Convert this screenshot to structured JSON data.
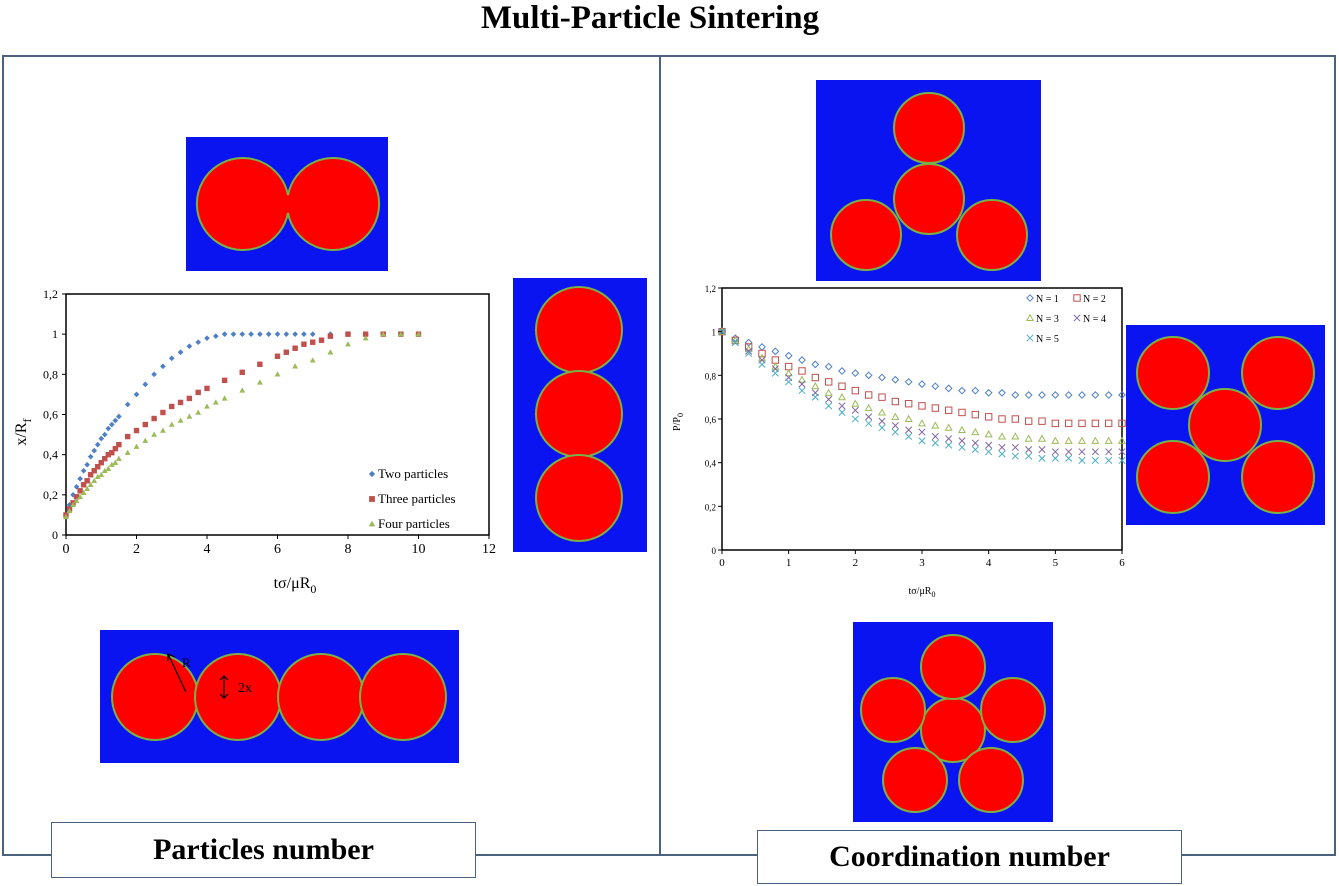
{
  "title": "Multi-Particle Sintering",
  "panels": {
    "left_label": "Particles number",
    "right_label": "Coordination number"
  },
  "colors": {
    "background_blue": "#0a14f0",
    "particle_red": "#ff0000",
    "particle_outline": "#7ab048",
    "frame": "#4a6180",
    "series_blue": "#4f7fc6",
    "series_red": "#c0504d",
    "series_green": "#9bbb59",
    "series_cyan": "#4bacc6",
    "series_purple": "#8064a2"
  },
  "sketch_labels": {
    "radius": "R",
    "neck": "2x"
  },
  "chart_data": [
    {
      "type": "scatter",
      "xlabel": "tσ/μR",
      "xlabel_sub": "0",
      "ylabel": "x/R",
      "ylabel_sub": "f",
      "xlim": [
        0,
        12
      ],
      "ylim": [
        0,
        1.2
      ],
      "x_ticks": [
        "0",
        "2",
        "4",
        "6",
        "8",
        "10",
        "12"
      ],
      "y_ticks": [
        "0",
        "0,2",
        "0,4",
        "0,6",
        "0,8",
        "1",
        "1,2"
      ],
      "legend_position": "bottom-right",
      "series": [
        {
          "name": "Two particles",
          "marker": "diamond",
          "color": "#4f7fc6",
          "x": [
            0,
            0.1,
            0.2,
            0.3,
            0.4,
            0.5,
            0.6,
            0.7,
            0.8,
            0.9,
            1.0,
            1.1,
            1.2,
            1.3,
            1.4,
            1.5,
            1.75,
            2.0,
            2.25,
            2.5,
            2.75,
            3.0,
            3.25,
            3.5,
            3.75,
            4.0,
            4.25,
            4.5,
            4.75,
            5.0,
            5.25,
            5.5,
            5.75,
            6.0,
            6.25,
            6.5,
            6.75,
            7.0,
            7.5,
            8.0,
            8.5,
            9.0,
            9.5,
            10.0
          ],
          "y": [
            0.1,
            0.15,
            0.2,
            0.24,
            0.28,
            0.32,
            0.35,
            0.39,
            0.42,
            0.45,
            0.48,
            0.5,
            0.53,
            0.55,
            0.57,
            0.59,
            0.65,
            0.7,
            0.75,
            0.8,
            0.84,
            0.88,
            0.91,
            0.94,
            0.96,
            0.98,
            0.99,
            1.0,
            1.0,
            1.0,
            1.0,
            1.0,
            1.0,
            1.0,
            1.0,
            1.0,
            1.0,
            1.0,
            1.0,
            1.0,
            1.0,
            1.0,
            1.0,
            1.0
          ]
        },
        {
          "name": "Three particles",
          "marker": "square",
          "color": "#c0504d",
          "x": [
            0,
            0.1,
            0.2,
            0.3,
            0.4,
            0.5,
            0.6,
            0.7,
            0.8,
            0.9,
            1.0,
            1.1,
            1.2,
            1.3,
            1.4,
            1.5,
            1.75,
            2.0,
            2.25,
            2.5,
            2.75,
            3.0,
            3.25,
            3.5,
            3.75,
            4.0,
            4.5,
            5.0,
            5.5,
            6.0,
            6.25,
            6.5,
            6.75,
            7.0,
            7.25,
            7.5,
            8.0,
            8.5,
            9.0,
            9.5,
            10.0
          ],
          "y": [
            0.1,
            0.13,
            0.16,
            0.19,
            0.22,
            0.25,
            0.27,
            0.3,
            0.32,
            0.34,
            0.36,
            0.38,
            0.4,
            0.41,
            0.43,
            0.45,
            0.49,
            0.52,
            0.55,
            0.58,
            0.61,
            0.64,
            0.66,
            0.68,
            0.71,
            0.73,
            0.77,
            0.81,
            0.85,
            0.89,
            0.91,
            0.93,
            0.95,
            0.96,
            0.97,
            0.99,
            1.0,
            1.0,
            1.0,
            1.0,
            1.0
          ]
        },
        {
          "name": "Four particles",
          "marker": "triangle",
          "color": "#9bbb59",
          "x": [
            0,
            0.1,
            0.2,
            0.3,
            0.4,
            0.5,
            0.6,
            0.7,
            0.8,
            0.9,
            1.0,
            1.1,
            1.2,
            1.3,
            1.4,
            1.5,
            1.75,
            2.0,
            2.25,
            2.5,
            2.75,
            3.0,
            3.25,
            3.5,
            3.75,
            4.0,
            4.25,
            4.5,
            5.0,
            5.5,
            6.0,
            6.5,
            7.0,
            7.5,
            8.0,
            8.5,
            9.0,
            9.5,
            10.0
          ],
          "y": [
            0.09,
            0.12,
            0.15,
            0.17,
            0.19,
            0.21,
            0.23,
            0.25,
            0.27,
            0.29,
            0.3,
            0.32,
            0.33,
            0.35,
            0.36,
            0.38,
            0.41,
            0.44,
            0.47,
            0.5,
            0.52,
            0.55,
            0.57,
            0.59,
            0.61,
            0.64,
            0.66,
            0.68,
            0.72,
            0.76,
            0.8,
            0.84,
            0.87,
            0.91,
            0.95,
            0.98,
            1.0,
            1.0,
            1.0
          ]
        }
      ]
    },
    {
      "type": "scatter",
      "xlabel": "tσ/μR",
      "xlabel_sub": "0",
      "ylabel": "P/P",
      "ylabel_sub": "0",
      "xlim": [
        0,
        6
      ],
      "ylim": [
        0,
        1.2
      ],
      "x_ticks": [
        "0",
        "1",
        "2",
        "3",
        "4",
        "5",
        "6"
      ],
      "y_ticks": [
        "0",
        "0,2",
        "0,4",
        "0,6",
        "0,8",
        "1",
        "1,2"
      ],
      "legend_position": "top-right",
      "series": [
        {
          "name": "N = 1",
          "marker": "diamond",
          "color": "#4f7fc6",
          "x": [
            0,
            0.2,
            0.4,
            0.6,
            0.8,
            1.0,
            1.2,
            1.4,
            1.6,
            1.8,
            2.0,
            2.2,
            2.4,
            2.6,
            2.8,
            3.0,
            3.2,
            3.4,
            3.6,
            3.8,
            4.0,
            4.2,
            4.4,
            4.6,
            4.8,
            5.0,
            5.2,
            5.4,
            5.6,
            5.8,
            6.0
          ],
          "y": [
            1.0,
            0.97,
            0.95,
            0.93,
            0.91,
            0.89,
            0.87,
            0.85,
            0.84,
            0.82,
            0.81,
            0.8,
            0.79,
            0.78,
            0.77,
            0.76,
            0.75,
            0.74,
            0.73,
            0.73,
            0.72,
            0.72,
            0.71,
            0.71,
            0.71,
            0.71,
            0.71,
            0.71,
            0.71,
            0.71,
            0.71
          ]
        },
        {
          "name": "N = 2",
          "marker": "square",
          "color": "#c0504d",
          "x": [
            0,
            0.2,
            0.4,
            0.6,
            0.8,
            1.0,
            1.2,
            1.4,
            1.6,
            1.8,
            2.0,
            2.2,
            2.4,
            2.6,
            2.8,
            3.0,
            3.2,
            3.4,
            3.6,
            3.8,
            4.0,
            4.2,
            4.4,
            4.6,
            4.8,
            5.0,
            5.2,
            5.4,
            5.6,
            5.8,
            6.0
          ],
          "y": [
            1.0,
            0.96,
            0.93,
            0.9,
            0.87,
            0.84,
            0.82,
            0.79,
            0.77,
            0.75,
            0.73,
            0.71,
            0.7,
            0.68,
            0.67,
            0.66,
            0.65,
            0.64,
            0.63,
            0.62,
            0.61,
            0.6,
            0.6,
            0.59,
            0.59,
            0.58,
            0.58,
            0.58,
            0.58,
            0.58,
            0.58
          ]
        },
        {
          "name": "N = 3",
          "marker": "triangle",
          "color": "#9bbb59",
          "x": [
            0,
            0.2,
            0.4,
            0.6,
            0.8,
            1.0,
            1.2,
            1.4,
            1.6,
            1.8,
            2.0,
            2.2,
            2.4,
            2.6,
            2.8,
            3.0,
            3.2,
            3.4,
            3.6,
            3.8,
            4.0,
            4.2,
            4.4,
            4.6,
            4.8,
            5.0,
            5.2,
            5.4,
            5.6,
            5.8,
            6.0
          ],
          "y": [
            1.0,
            0.96,
            0.92,
            0.88,
            0.84,
            0.81,
            0.78,
            0.75,
            0.72,
            0.7,
            0.67,
            0.65,
            0.63,
            0.61,
            0.6,
            0.58,
            0.57,
            0.56,
            0.55,
            0.54,
            0.53,
            0.52,
            0.52,
            0.51,
            0.51,
            0.5,
            0.5,
            0.5,
            0.5,
            0.5,
            0.5
          ]
        },
        {
          "name": "N = 4",
          "marker": "x",
          "color": "#8064a2",
          "x": [
            0,
            0.2,
            0.4,
            0.6,
            0.8,
            1.0,
            1.2,
            1.4,
            1.6,
            1.8,
            2.0,
            2.2,
            2.4,
            2.6,
            2.8,
            3.0,
            3.2,
            3.4,
            3.6,
            3.8,
            4.0,
            4.2,
            4.4,
            4.6,
            4.8,
            5.0,
            5.2,
            5.4,
            5.6,
            5.8,
            6.0
          ],
          "y": [
            1.0,
            0.95,
            0.91,
            0.87,
            0.83,
            0.79,
            0.76,
            0.72,
            0.69,
            0.66,
            0.64,
            0.61,
            0.59,
            0.57,
            0.55,
            0.54,
            0.52,
            0.51,
            0.5,
            0.49,
            0.48,
            0.47,
            0.47,
            0.46,
            0.46,
            0.45,
            0.45,
            0.45,
            0.45,
            0.45,
            0.45
          ]
        },
        {
          "name": "N = 5",
          "marker": "x",
          "color": "#4bacc6",
          "x": [
            0,
            0.2,
            0.4,
            0.6,
            0.8,
            1.0,
            1.2,
            1.4,
            1.6,
            1.8,
            2.0,
            2.2,
            2.4,
            2.6,
            2.8,
            3.0,
            3.2,
            3.4,
            3.6,
            3.8,
            4.0,
            4.2,
            4.4,
            4.6,
            4.8,
            5.0,
            5.2,
            5.4,
            5.6,
            5.8,
            6.0
          ],
          "y": [
            1.0,
            0.95,
            0.9,
            0.85,
            0.81,
            0.77,
            0.73,
            0.7,
            0.66,
            0.63,
            0.6,
            0.58,
            0.56,
            0.54,
            0.52,
            0.5,
            0.49,
            0.48,
            0.47,
            0.46,
            0.45,
            0.44,
            0.43,
            0.43,
            0.42,
            0.42,
            0.42,
            0.41,
            0.41,
            0.41,
            0.41
          ]
        }
      ]
    }
  ]
}
